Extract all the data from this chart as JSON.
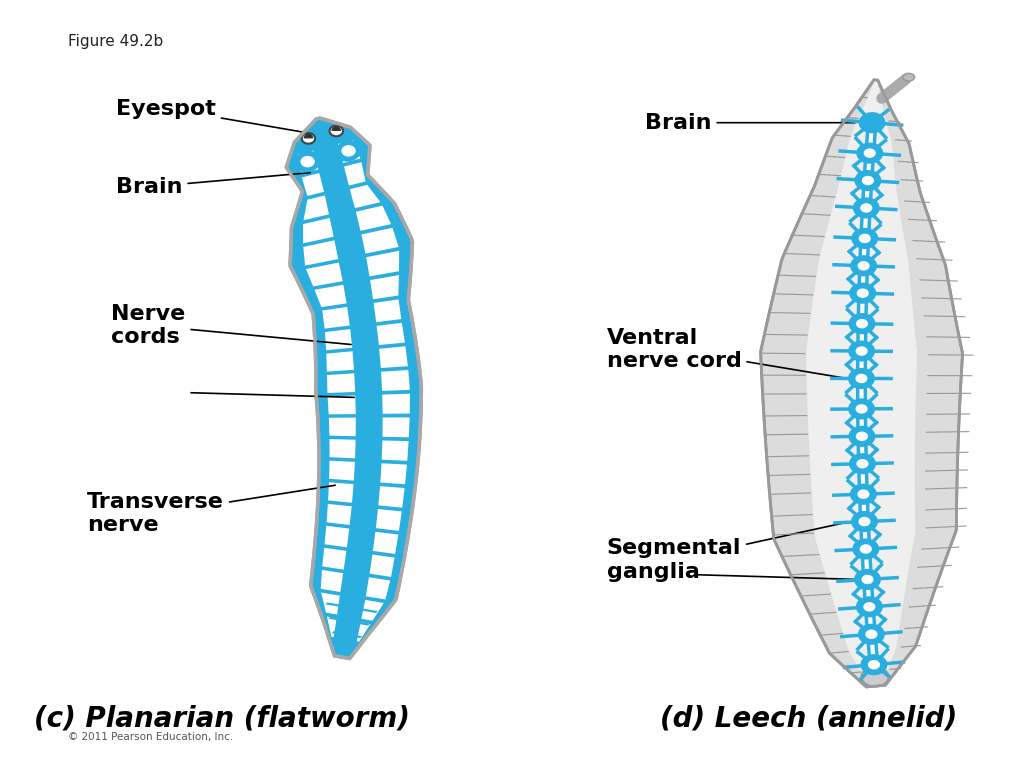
{
  "figure_label": "Figure 49.2b",
  "background_color": "#ffffff",
  "blue_color": "#2AAEE0",
  "gray_body_color": "#D0D0D0",
  "gray_body_edge": "#A8A8A8",
  "gray_light": "#E8E8E8",
  "copyright": "© 2011 Pearson Education, Inc.",
  "left_title": "(c) Planarian (flatworm)",
  "right_title": "(d) Leech (annelid)",
  "title_fontsize": 20,
  "label_fontsize": 16
}
